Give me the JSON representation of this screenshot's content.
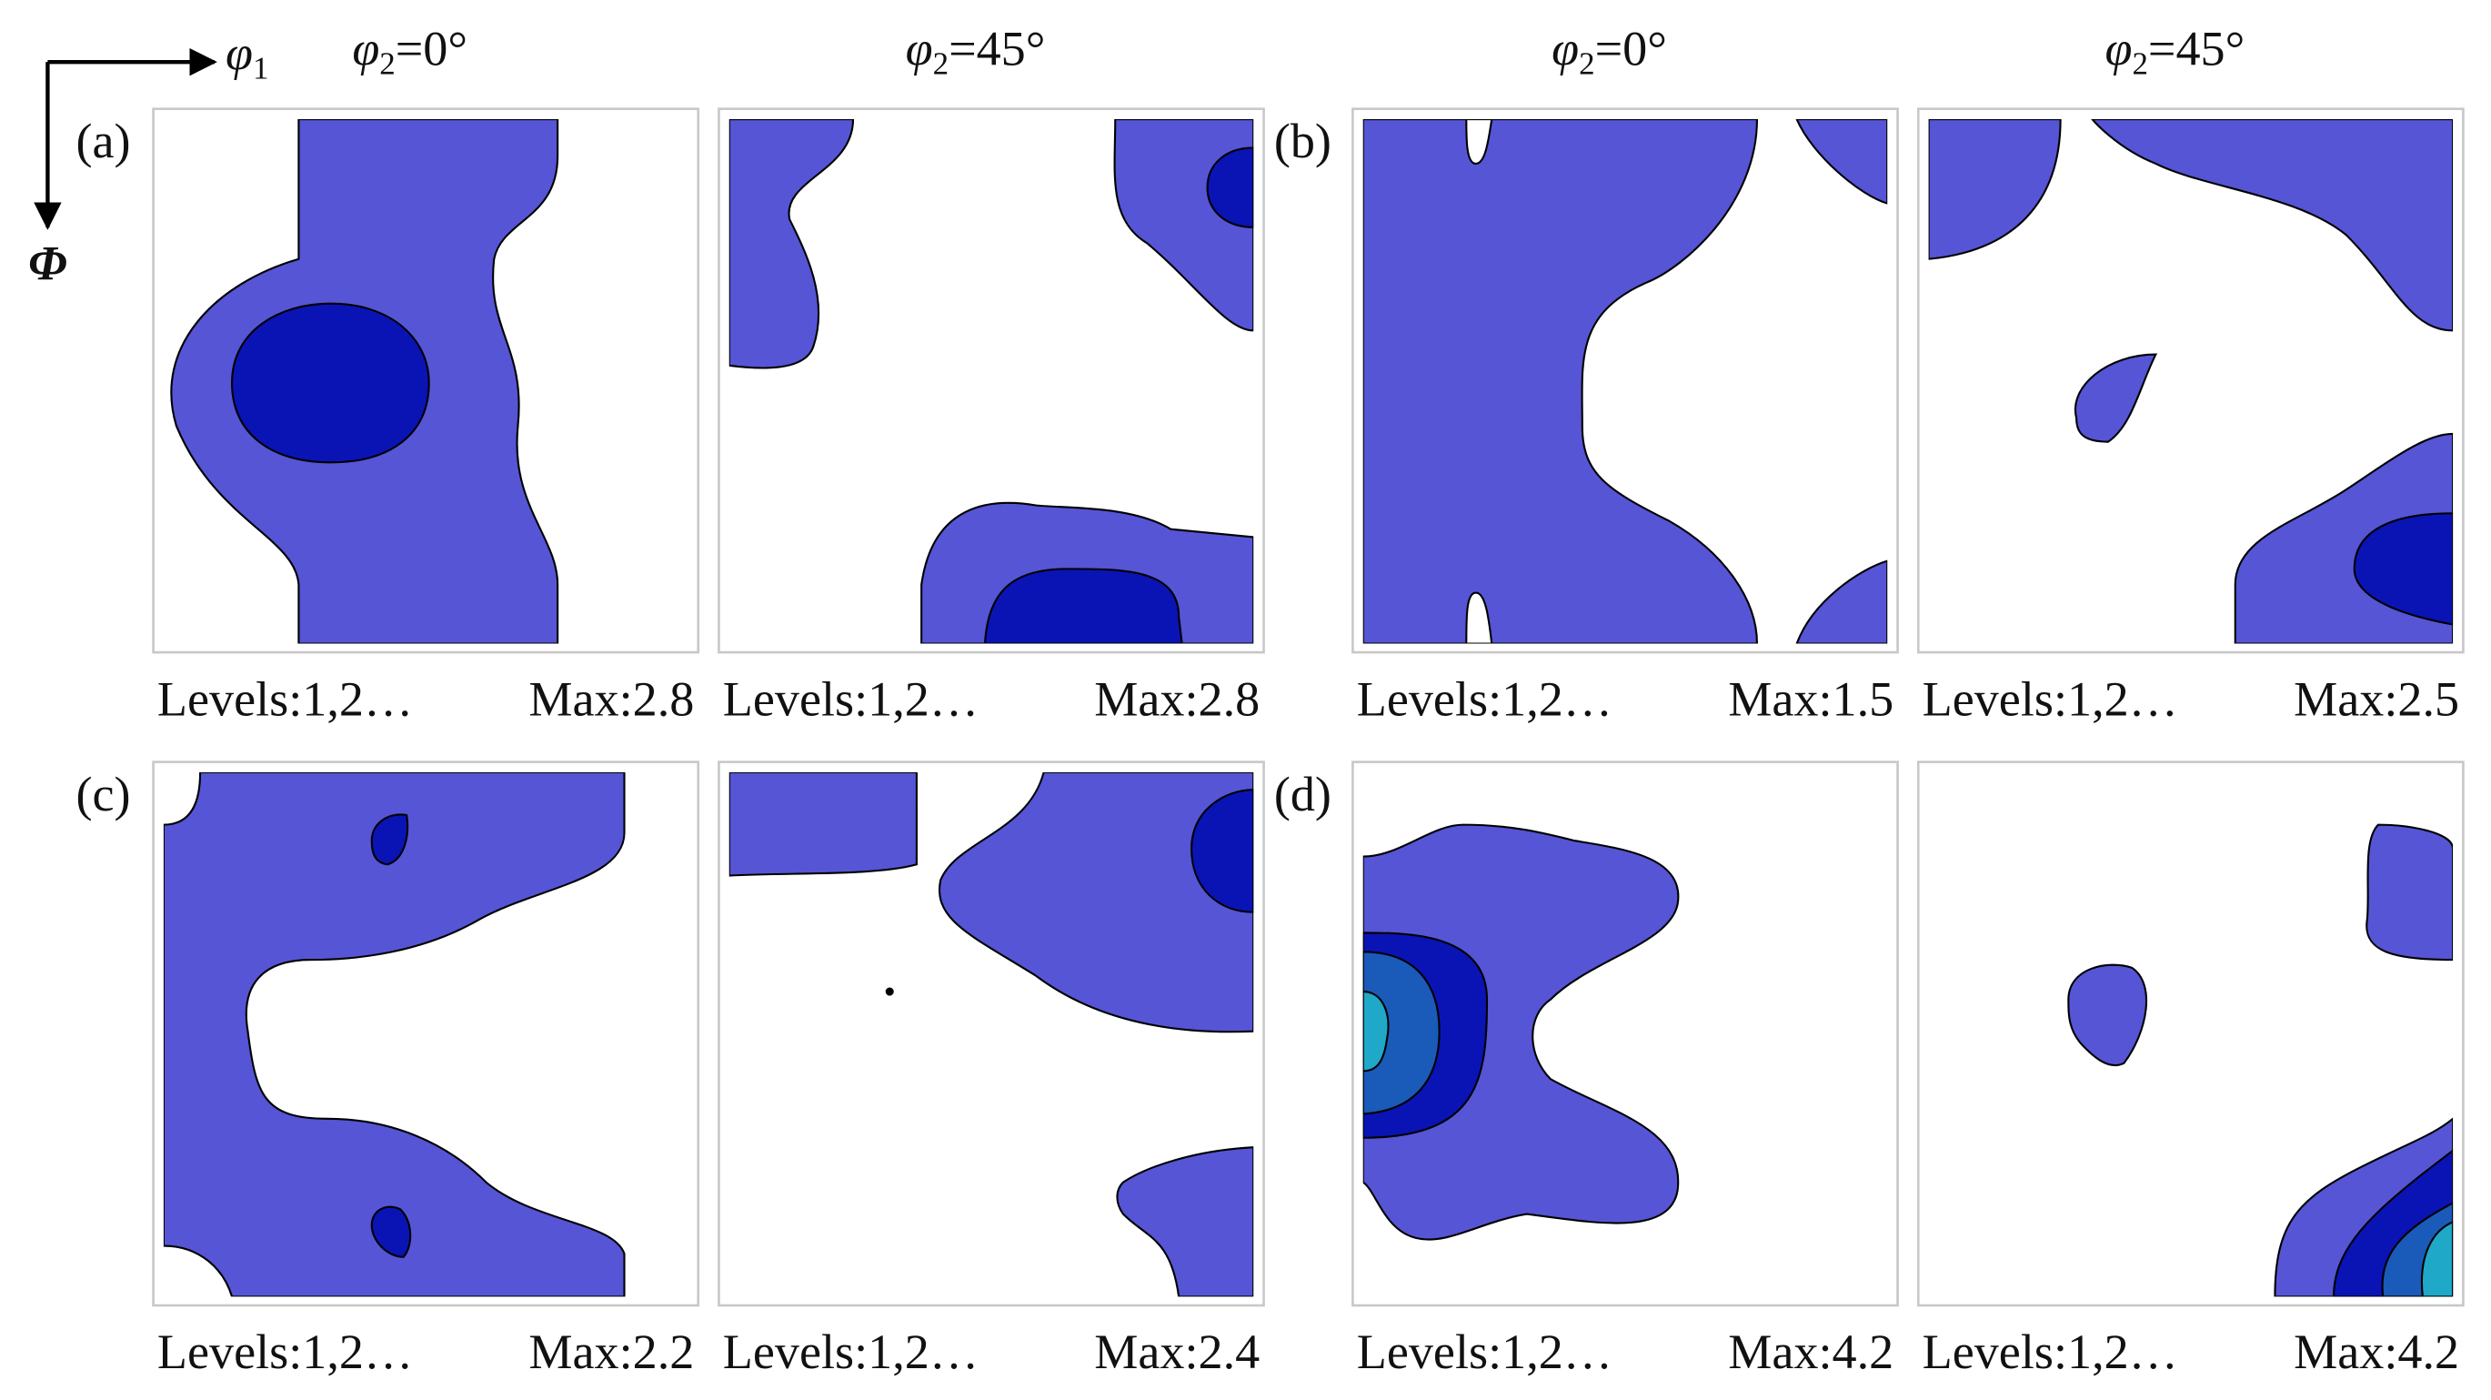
{
  "x_axis": {
    "symbol": "φ",
    "sub": "1"
  },
  "y_axis": "Φ",
  "columns": [
    {
      "symbol": "φ",
      "sub": "2",
      "rest": "=0°"
    },
    {
      "symbol": "φ",
      "sub": "2",
      "rest": "=45°"
    },
    {
      "symbol": "φ",
      "sub": "2",
      "rest": "=0°"
    },
    {
      "symbol": "φ",
      "sub": "2",
      "rest": "=45°"
    }
  ],
  "panels": [
    {
      "label": "(a)",
      "maps": [
        {
          "levels": "Levels:1,2…",
          "max": "Max:2.8"
        },
        {
          "levels": "Levels:1,2…",
          "max": "Max:2.8"
        }
      ]
    },
    {
      "label": "(b)",
      "maps": [
        {
          "levels": "Levels:1,2…",
          "max": "Max:1.5"
        },
        {
          "levels": "Levels:1,2…",
          "max": "Max:2.5"
        }
      ]
    },
    {
      "label": "(c)",
      "maps": [
        {
          "levels": "Levels:1,2…",
          "max": "Max:2.2"
        },
        {
          "levels": "Levels:1,2…",
          "max": "Max:2.4"
        }
      ]
    },
    {
      "label": "(d)",
      "maps": [
        {
          "levels": "Levels:1,2…",
          "max": "Max:4.2"
        },
        {
          "levels": "Levels:1,2…",
          "max": "Max:4.2"
        }
      ]
    }
  ]
}
